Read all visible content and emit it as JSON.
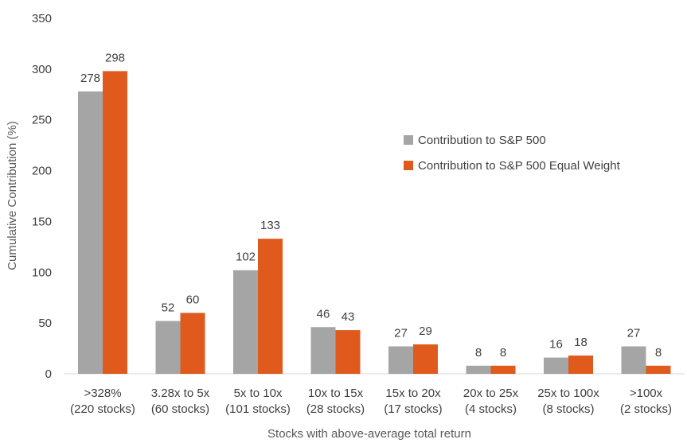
{
  "chart_data": {
    "type": "bar",
    "xlabel": "Stocks with above-average total return",
    "ylabel": "Cumulative Contribution (%)",
    "ylim": [
      0,
      350
    ],
    "yticks": [
      0,
      50,
      100,
      150,
      200,
      250,
      300,
      350
    ],
    "grid": false,
    "legend_position": "right",
    "categories": [
      [
        ">328%",
        "(220 stocks)"
      ],
      [
        "3.28x to 5x",
        "(60 stocks)"
      ],
      [
        "5x to 10x",
        "(101 stocks)"
      ],
      [
        "10x to 15x",
        "(28 stocks)"
      ],
      [
        "15x to 20x",
        "(17 stocks)"
      ],
      [
        "20x to 25x",
        "(4 stocks)"
      ],
      [
        "25x to 100x",
        "(8 stocks)"
      ],
      [
        ">100x",
        "(2 stocks)"
      ]
    ],
    "series": [
      {
        "name": "Contribution to S&P 500",
        "color": "#a5a5a5",
        "values": [
          278,
          52,
          102,
          46,
          27,
          8,
          16,
          27
        ]
      },
      {
        "name": "Contribution to S&P 500 Equal Weight",
        "color": "#e05a1e",
        "values": [
          298,
          60,
          133,
          43,
          29,
          8,
          18,
          8
        ]
      }
    ]
  }
}
